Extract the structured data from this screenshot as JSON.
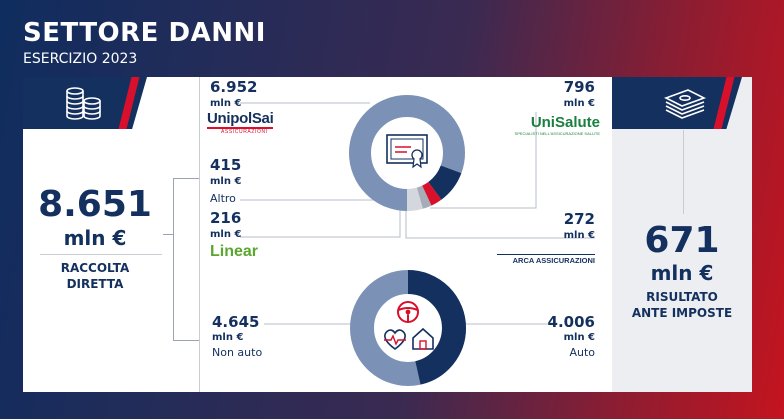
{
  "header": {
    "title": "SETTORE DANNI",
    "subtitle": "ESERCIZIO 2023"
  },
  "left": {
    "value": "8.651",
    "unit": "mln €",
    "label_line1": "RACCOLTA",
    "label_line2": "DIRETTA",
    "icon": "coins-icon"
  },
  "right": {
    "value": "671",
    "unit": "mln €",
    "label_line1": "RISULTATO",
    "label_line2": "ANTE IMPOSTE",
    "icon": "banknotes-icon"
  },
  "top_donut": {
    "icon": "certificate-icon",
    "items": [
      {
        "value": "6.952",
        "unit": "mln €",
        "brand": "UnipolSai",
        "brand_sub": "ASSICURAZIONI"
      },
      {
        "value": "415",
        "unit": "mln €",
        "caption": "Altro"
      },
      {
        "value": "216",
        "unit": "mln €",
        "brand": "Linear"
      },
      {
        "value": "796",
        "unit": "mln €",
        "brand": "UniSalute",
        "brand_sub": "SPECIALISTI NELL'ASSICURAZIONE SALUTE"
      },
      {
        "value": "272",
        "unit": "mln €",
        "brand": "ARCA ASSICURAZIONI"
      }
    ]
  },
  "bottom_donut": {
    "icons": [
      "steering-wheel-icon",
      "heart-health-icon",
      "house-icon"
    ],
    "left": {
      "value": "4.645",
      "unit": "mln €",
      "caption": "Non auto"
    },
    "right": {
      "value": "4.006",
      "unit": "mln €",
      "caption": "Auto"
    }
  },
  "colors": {
    "navy": "#13305e",
    "steel": "#7b92b6",
    "red": "#d8102c",
    "lightgrey": "#c9ccd3",
    "green": "#5aa62f",
    "unisalute_green": "#1a7f3f"
  }
}
